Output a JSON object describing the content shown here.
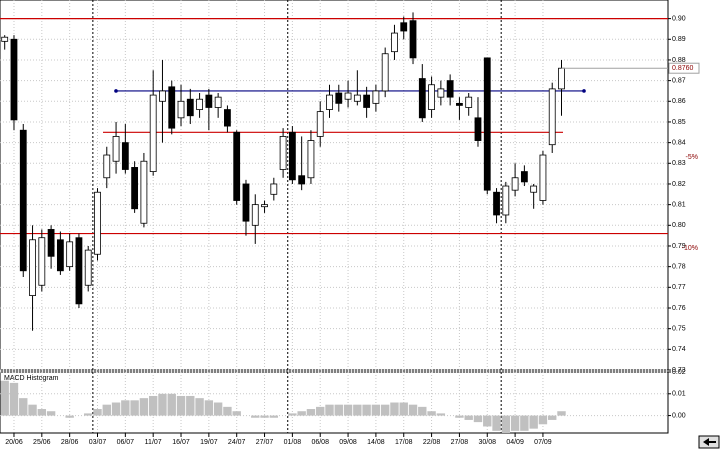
{
  "chart_data": [
    {
      "type": "candlestick",
      "categories": [
        null,
        "20/06",
        null,
        null,
        "25/06",
        null,
        null,
        "28/06",
        null,
        null,
        "03/07",
        null,
        null,
        "06/07",
        null,
        null,
        "11/07",
        null,
        null,
        "16/07",
        null,
        null,
        "19/07",
        null,
        null,
        "24/07",
        null,
        null,
        "27/07",
        null,
        null,
        "01/08",
        null,
        null,
        "06/08",
        null,
        null,
        "09/08",
        null,
        null,
        "14/08",
        null,
        null,
        "17/08",
        null,
        null,
        "22/08",
        null,
        null,
        "27/08",
        null,
        null,
        "30/08",
        null,
        null,
        "04/09",
        null,
        null,
        "07/09",
        null,
        null
      ],
      "open": [
        0.889,
        0.89,
        0.846,
        0.766,
        0.771,
        0.798,
        0.793,
        0.78,
        0.794,
        0.771,
        0.786,
        0.823,
        0.831,
        0.84,
        0.828,
        0.801,
        0.826,
        0.86,
        0.867,
        0.852,
        0.861,
        0.856,
        0.863,
        0.857,
        0.856,
        0.845,
        0.82,
        0.8,
        0.809,
        0.815,
        0.827,
        0.845,
        0.824,
        0.823,
        0.843,
        0.856,
        0.864,
        0.861,
        0.86,
        0.863,
        0.859,
        0.865,
        0.884,
        0.898,
        0.899,
        0.871,
        0.856,
        0.862,
        0.87,
        0.859,
        0.857,
        0.852,
        0.881,
        0.816,
        0.805,
        0.817,
        0.826,
        0.816,
        0.812,
        0.839,
        0.866
      ],
      "high": [
        0.892,
        0.892,
        0.849,
        0.8,
        0.798,
        0.8,
        0.797,
        0.796,
        0.796,
        0.79,
        0.818,
        0.838,
        0.85,
        0.849,
        0.831,
        0.835,
        0.875,
        0.88,
        0.87,
        0.868,
        0.866,
        0.864,
        0.866,
        0.864,
        0.858,
        0.846,
        0.822,
        0.815,
        0.812,
        0.823,
        0.847,
        0.848,
        0.843,
        0.846,
        0.86,
        0.868,
        0.868,
        0.87,
        0.875,
        0.867,
        0.868,
        0.886,
        0.897,
        0.901,
        0.903,
        0.878,
        0.872,
        0.87,
        0.873,
        0.862,
        0.864,
        0.862,
        0.881,
        0.818,
        0.821,
        0.83,
        0.829,
        0.82,
        0.836,
        0.869,
        0.88
      ],
      "low": [
        0.885,
        0.846,
        0.775,
        0.749,
        0.768,
        0.779,
        0.776,
        0.778,
        0.76,
        0.768,
        0.783,
        0.818,
        0.825,
        0.825,
        0.806,
        0.799,
        0.824,
        0.84,
        0.844,
        0.848,
        0.849,
        0.852,
        0.846,
        0.852,
        0.845,
        0.81,
        0.795,
        0.791,
        0.806,
        0.812,
        0.823,
        0.82,
        0.817,
        0.82,
        0.838,
        0.852,
        0.855,
        0.857,
        0.858,
        0.852,
        0.855,
        0.862,
        0.88,
        0.89,
        0.878,
        0.85,
        0.852,
        0.858,
        0.858,
        0.851,
        0.853,
        0.838,
        0.815,
        0.801,
        0.801,
        0.814,
        0.819,
        0.808,
        0.81,
        0.835,
        0.853
      ],
      "close": [
        0.891,
        0.851,
        0.778,
        0.793,
        0.794,
        0.785,
        0.778,
        0.792,
        0.762,
        0.788,
        0.816,
        0.834,
        0.843,
        0.827,
        0.808,
        0.831,
        0.863,
        0.865,
        0.847,
        0.86,
        0.853,
        0.861,
        0.857,
        0.862,
        0.848,
        0.812,
        0.802,
        0.81,
        0.81,
        0.82,
        0.843,
        0.822,
        0.82,
        0.841,
        0.855,
        0.863,
        0.859,
        0.864,
        0.863,
        0.857,
        0.865,
        0.883,
        0.893,
        0.894,
        0.881,
        0.852,
        0.868,
        0.866,
        0.862,
        0.858,
        0.862,
        0.841,
        0.817,
        0.805,
        0.819,
        0.823,
        0.821,
        0.819,
        0.834,
        0.866,
        0.876
      ],
      "ylim": [
        0.73,
        0.909
      ],
      "yticks": [
        0.73,
        0.74,
        0.75,
        0.76,
        0.77,
        0.78,
        0.79,
        {
          "value": 0.8,
          "label": "0.80"
        },
        0.81,
        0.82,
        0.83,
        0.84,
        0.85,
        0.86,
        0.87,
        0.88,
        0.89,
        {
          "value": 0.9,
          "label": "0.90"
        }
      ],
      "levels": [
        {
          "value": 0.9,
          "color": "#cc0000"
        },
        {
          "value": 0.865,
          "color": "#000080"
        },
        {
          "value": 0.845,
          "color": "#cc0000"
        },
        {
          "value": 0.796,
          "color": "#cc0000"
        }
      ],
      "annotations": [
        {
          "text": "-5%",
          "y": 0.833
        },
        {
          "text": "-10%",
          "y": 0.789
        }
      ],
      "last_price": {
        "value": 0.876,
        "label": "0.8760"
      },
      "grid": true
    },
    {
      "type": "bar",
      "title": "MACD Histogram",
      "color": "#c0c0c0",
      "values": [
        0.016,
        0.015,
        0.008,
        0.005,
        0.003,
        0.002,
        0.0,
        -0.001,
        0.0,
        0.001,
        0.003,
        0.005,
        0.006,
        0.007,
        0.007,
        0.008,
        0.009,
        0.01,
        0.01,
        0.009,
        0.009,
        0.008,
        0.007,
        0.006,
        0.004,
        0.002,
        0.0,
        -0.001,
        -0.001,
        -0.001,
        0.0,
        0.001,
        0.002,
        0.003,
        0.004,
        0.005,
        0.005,
        0.005,
        0.005,
        0.005,
        0.005,
        0.005,
        0.006,
        0.006,
        0.005,
        0.004,
        0.002,
        0.001,
        0.0,
        -0.001,
        -0.002,
        -0.003,
        -0.005,
        -0.007,
        -0.008,
        -0.007,
        -0.007,
        -0.006,
        -0.004,
        -0.002,
        0.002
      ],
      "ylim": [
        -0.008,
        0.02
      ],
      "yticks": [
        {
          "value": 0,
          "label": "0.00"
        },
        0.01,
        0.02
      ],
      "grid": true
    }
  ]
}
